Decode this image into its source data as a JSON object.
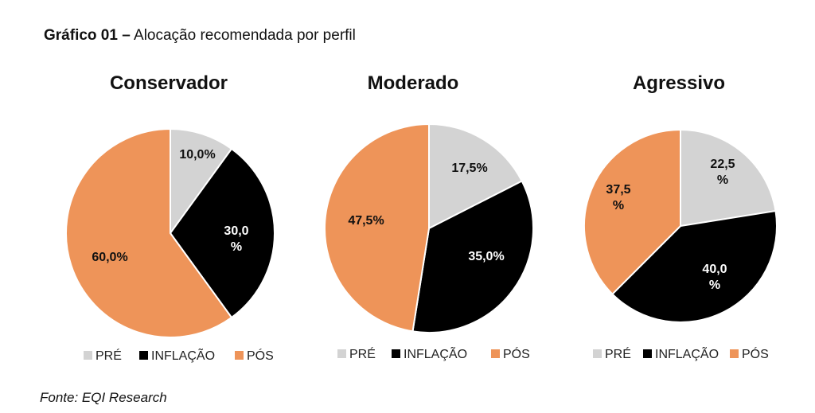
{
  "figure": {
    "title_prefix": "Gráfico 01",
    "title_separator": "–",
    "title_text": "Alocação recomendada por perfil",
    "source": "Fonte: EQI Research"
  },
  "colors": {
    "PRÉ": "#d3d3d3",
    "INFLAÇÃO": "#000000",
    "PÓS": "#ee9459"
  },
  "chart_data": [
    {
      "type": "pie",
      "title": "Conservador",
      "legend_position": "bottom",
      "slices": [
        {
          "label": "PRÉ",
          "value": 10.0,
          "data_label": [
            "10,0%"
          ]
        },
        {
          "label": "INFLAÇÃO",
          "value": 30.0,
          "data_label": [
            "30,0",
            "%"
          ]
        },
        {
          "label": "PÓS",
          "value": 60.0,
          "data_label": [
            "60,0%"
          ]
        }
      ]
    },
    {
      "type": "pie",
      "title": "Moderado",
      "legend_position": "bottom",
      "slices": [
        {
          "label": "PRÉ",
          "value": 17.5,
          "data_label": [
            "17,5%"
          ]
        },
        {
          "label": "INFLAÇÃO",
          "value": 35.0,
          "data_label": [
            "35,0%"
          ]
        },
        {
          "label": "PÓS",
          "value": 47.5,
          "data_label": [
            "47,5%"
          ]
        }
      ]
    },
    {
      "type": "pie",
      "title": "Agressivo",
      "legend_position": "bottom",
      "slices": [
        {
          "label": "PRÉ",
          "value": 22.5,
          "data_label": [
            "22,5",
            "%"
          ]
        },
        {
          "label": "INFLAÇÃO",
          "value": 40.0,
          "data_label": [
            "40,0",
            "%"
          ]
        },
        {
          "label": "PÓS",
          "value": 37.5,
          "data_label": [
            "37,5",
            "%"
          ]
        }
      ]
    }
  ]
}
